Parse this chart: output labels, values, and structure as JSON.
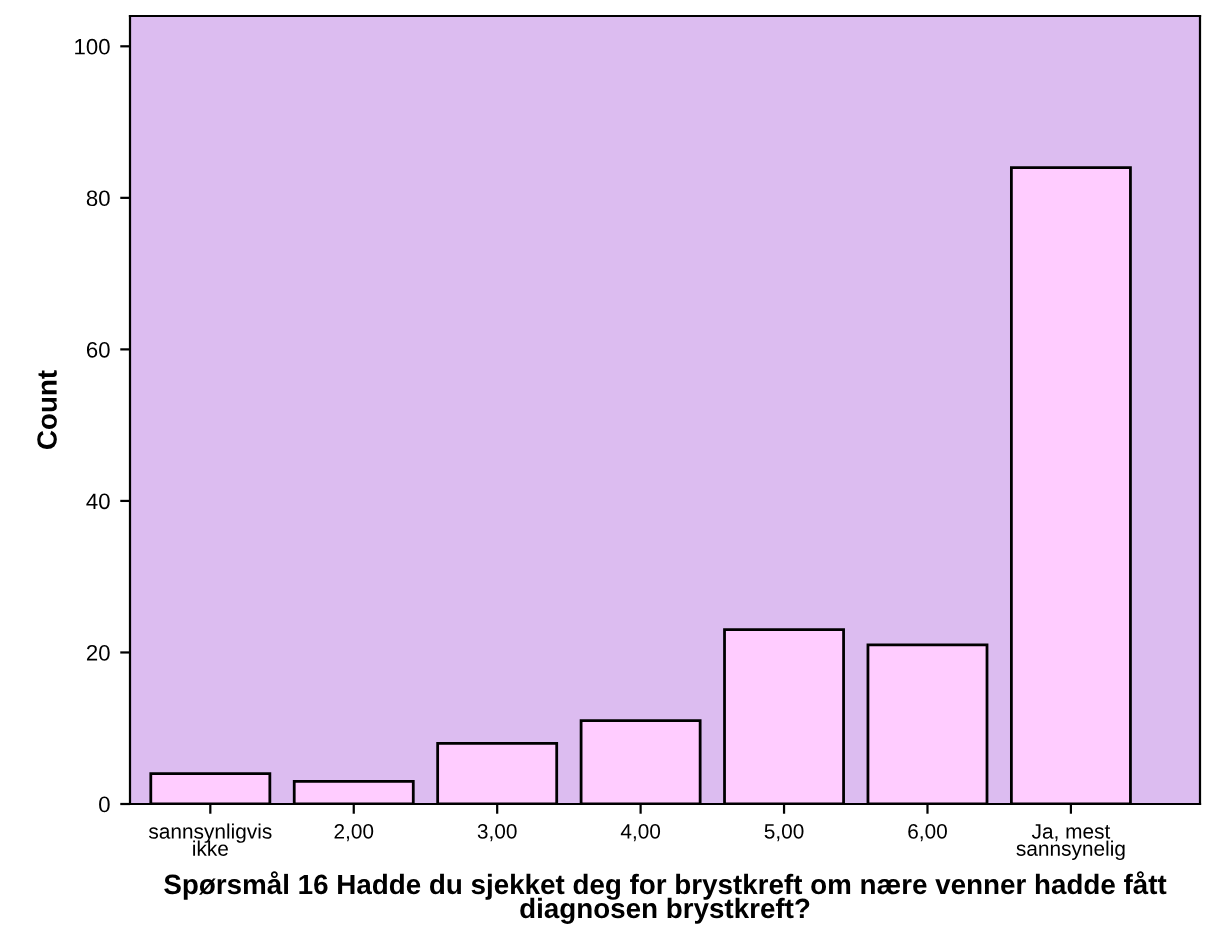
{
  "chart_data": {
    "type": "bar",
    "xlabel": "Spørsmål 16 Hadde du sjekket deg for brystkreft om nære venner hadde fått diagnosen brystkreft?",
    "ylabel": "Count",
    "categories": [
      "sannsynligvis\nikke",
      "2,00",
      "3,00",
      "4,00",
      "5,00",
      "6,00",
      "Ja, mest\nsannsynelig"
    ],
    "values": [
      4,
      3,
      8,
      11,
      23,
      21,
      84
    ],
    "color": "#ffccff",
    "ylim": [
      0,
      104
    ],
    "yticks": [
      0,
      20,
      40,
      60,
      80,
      100
    ],
    "grid": false,
    "legend": false
  }
}
